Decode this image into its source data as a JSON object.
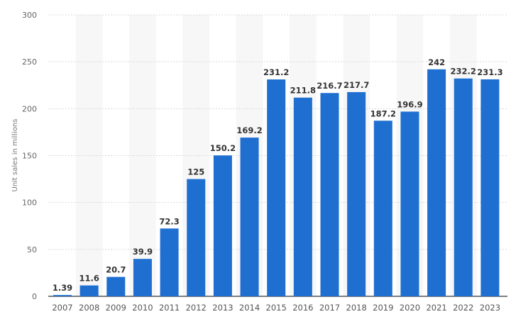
{
  "chart_data": {
    "type": "bar",
    "title": "",
    "xlabel": "",
    "ylabel": "Unit sales in millions",
    "ylim": [
      0,
      300
    ],
    "yticks": [
      0,
      50,
      100,
      150,
      200,
      250,
      300
    ],
    "grid": true,
    "categories": [
      "2007",
      "2008",
      "2009",
      "2010",
      "2011",
      "2012",
      "2013",
      "2014",
      "2015",
      "2016",
      "2017",
      "2018",
      "2019",
      "2020",
      "2021",
      "2022",
      "2023"
    ],
    "values": [
      1.39,
      11.6,
      20.7,
      39.9,
      72.3,
      125,
      150.2,
      169.2,
      231.2,
      211.8,
      216.7,
      217.7,
      187.2,
      196.9,
      242,
      232.2,
      231.3
    ],
    "data_labels": [
      "1.39",
      "11.6",
      "20.7",
      "39.9",
      "72.3",
      "125",
      "150.2",
      "169.2",
      "231.2",
      "211.8",
      "216.7",
      "217.7",
      "187.2",
      "196.9",
      "242",
      "232.2",
      "231.3"
    ],
    "colors": {
      "bar": "#1f6fd1",
      "band": "#f7f7f7",
      "grid": "#d9d9d9",
      "axis": "#333333"
    }
  }
}
